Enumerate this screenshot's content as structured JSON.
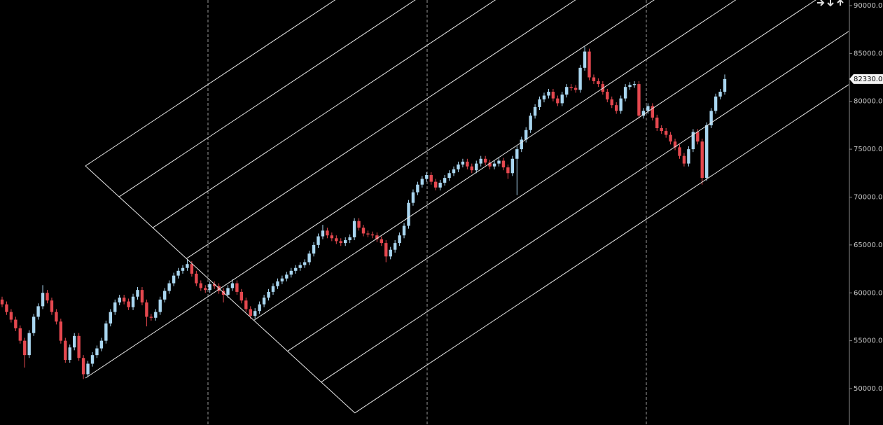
{
  "chart_data": {
    "type": "candlestick",
    "up_color": "#a9d6f0",
    "down_color": "#e5484f",
    "ylim": [
      46200,
      90580
    ],
    "yticks": [
      {
        "value": 50000,
        "label": "50000.0"
      },
      {
        "value": 55000,
        "label": "55000.0"
      },
      {
        "value": 60000,
        "label": "60000.0"
      },
      {
        "value": 65000,
        "label": "65000.0"
      },
      {
        "value": 70000,
        "label": "70000.0"
      },
      {
        "value": 75000,
        "label": "75000.0"
      },
      {
        "value": 80000,
        "label": "80000.0"
      },
      {
        "value": 85000,
        "label": "85000.0"
      },
      {
        "value": 90000,
        "label": "90000.0"
      }
    ],
    "last_price": {
      "value": 82330,
      "label": "82330.0"
    },
    "open": [
      59300,
      58800,
      58000,
      57200,
      56300,
      55000,
      53500,
      55800,
      57500,
      58600,
      60000,
      59200,
      58000,
      57000,
      55000,
      53000,
      54300,
      55500,
      53200,
      51500,
      52600,
      53500,
      54200,
      55000,
      56800,
      58000,
      59000,
      59500,
      59100,
      58500,
      59600,
      60300,
      59000,
      57500,
      57400,
      58000,
      59300,
      60200,
      61000,
      61800,
      62300,
      62600,
      63000,
      62000,
      61000,
      60500,
      60300,
      60900,
      60700,
      60200,
      59800,
      60500,
      61000,
      60100,
      59200,
      58300,
      57600,
      58100,
      58800,
      59500,
      60100,
      60700,
      61200,
      61500,
      61900,
      62300,
      62600,
      62900,
      63200,
      64100,
      65000,
      65900,
      66500,
      66000,
      65700,
      65400,
      65200,
      65500,
      65800,
      67500,
      66800,
      66200,
      66100,
      66000,
      65600,
      65200,
      63800,
      64500,
      65200,
      66000,
      67000,
      69400,
      70500,
      71300,
      71900,
      72300,
      71600,
      71000,
      71500,
      72000,
      72500,
      72900,
      73400,
      73700,
      73200,
      72800,
      73500,
      74000,
      73600,
      73200,
      73500,
      73800,
      73100,
      72500,
      74000,
      75000,
      76000,
      77000,
      78500,
      79400,
      80200,
      80600,
      81000,
      80300,
      79800,
      80700,
      81500,
      81400,
      81200,
      83500,
      85200,
      82500,
      82100,
      81800,
      81000,
      80200,
      79600,
      79000,
      80300,
      81500,
      81700,
      81800,
      78500,
      79000,
      79500,
      78300,
      77200,
      76900,
      76500,
      75800,
      75200,
      74300,
      73500,
      75000,
      76800,
      75800,
      72000,
      77500,
      79000,
      80500,
      81000
    ],
    "high": [
      59600,
      59100,
      58300,
      57500,
      56600,
      55300,
      56100,
      57800,
      58900,
      60800,
      60300,
      59500,
      58300,
      57300,
      55300,
      54600,
      55800,
      55800,
      53500,
      52900,
      53800,
      54500,
      55300,
      57100,
      58300,
      59300,
      59800,
      59800,
      59400,
      59900,
      60600,
      60600,
      59300,
      57800,
      58300,
      59600,
      60500,
      61300,
      62100,
      62600,
      62900,
      63500,
      63300,
      62300,
      61300,
      60800,
      61200,
      61200,
      61000,
      60500,
      60800,
      61400,
      61300,
      60400,
      59500,
      58600,
      58400,
      59100,
      59800,
      60400,
      61000,
      61500,
      61800,
      62200,
      62600,
      62900,
      63200,
      63500,
      64400,
      65300,
      66200,
      67100,
      66800,
      66300,
      66000,
      65700,
      65800,
      66100,
      67800,
      67800,
      67100,
      66500,
      66400,
      66300,
      65900,
      65500,
      64800,
      65500,
      66300,
      67300,
      69700,
      70800,
      71600,
      72200,
      72600,
      72600,
      71900,
      71800,
      72300,
      72800,
      73200,
      73700,
      74000,
      74000,
      73500,
      73800,
      74300,
      74300,
      73900,
      73800,
      74100,
      74100,
      73400,
      74300,
      75300,
      76300,
      77300,
      78800,
      79700,
      80500,
      80900,
      81300,
      81300,
      80600,
      81000,
      81800,
      81800,
      81700,
      83800,
      85700,
      85500,
      82800,
      82400,
      82100,
      81300,
      80500,
      79900,
      80600,
      81800,
      82000,
      82100,
      82100,
      79300,
      79800,
      79800,
      78600,
      77500,
      77200,
      76800,
      76100,
      75500,
      74600,
      75300,
      77100,
      77100,
      76100,
      77800,
      79300,
      80800,
      81300,
      82800
    ],
    "low": [
      58500,
      57700,
      56900,
      56000,
      54700,
      52200,
      53200,
      55500,
      57200,
      58300,
      58900,
      57700,
      56700,
      54700,
      52700,
      52700,
      54000,
      52900,
      51000,
      51200,
      52300,
      53200,
      53900,
      54700,
      56500,
      57700,
      58700,
      58800,
      58200,
      58200,
      59300,
      58700,
      56500,
      57100,
      57100,
      57700,
      59000,
      59900,
      60700,
      61500,
      62000,
      62300,
      61700,
      60700,
      60200,
      60000,
      60000,
      60400,
      59900,
      59000,
      59500,
      60200,
      59800,
      58900,
      58000,
      57300,
      57300,
      57800,
      58500,
      59200,
      59800,
      60400,
      60900,
      61200,
      61600,
      62000,
      62300,
      62600,
      62900,
      63800,
      64700,
      65600,
      65700,
      65400,
      65100,
      64900,
      64900,
      65200,
      65500,
      66500,
      65900,
      65800,
      65700,
      65300,
      64900,
      63200,
      63500,
      64200,
      64900,
      65700,
      66700,
      69100,
      70200,
      71000,
      71600,
      71300,
      70700,
      70700,
      71200,
      71700,
      72200,
      72600,
      73100,
      72900,
      72500,
      72500,
      73200,
      73300,
      72900,
      72900,
      73200,
      72800,
      71900,
      72200,
      70200,
      74700,
      75700,
      76700,
      78200,
      79100,
      79900,
      80300,
      80000,
      79500,
      79500,
      80400,
      81100,
      80900,
      80900,
      83200,
      82200,
      81800,
      81500,
      80700,
      79900,
      79300,
      78700,
      78700,
      80000,
      81200,
      81400,
      78200,
      78200,
      78700,
      78000,
      76900,
      76600,
      76200,
      75500,
      74900,
      74000,
      73200,
      73200,
      74700,
      75500,
      71300,
      71700,
      77200,
      78700,
      80200,
      80700
    ],
    "close": [
      58800,
      58000,
      57200,
      56300,
      55000,
      53500,
      55800,
      57500,
      58600,
      60000,
      59200,
      58000,
      57000,
      55000,
      53000,
      54300,
      55500,
      53200,
      51500,
      52600,
      53500,
      54200,
      55000,
      56800,
      58000,
      59000,
      59500,
      59100,
      58500,
      59600,
      60300,
      59000,
      57500,
      57400,
      58000,
      59300,
      60200,
      61000,
      61800,
      62300,
      62600,
      63000,
      62000,
      61000,
      60500,
      60300,
      60900,
      60700,
      60200,
      59800,
      60500,
      61000,
      60100,
      59200,
      58300,
      57600,
      58100,
      58800,
      59500,
      60100,
      60700,
      61200,
      61500,
      61900,
      62300,
      62600,
      62900,
      63200,
      64100,
      65000,
      65900,
      66500,
      66000,
      65700,
      65400,
      65200,
      65500,
      65800,
      67500,
      66800,
      66200,
      66100,
      66000,
      65600,
      65200,
      63800,
      64500,
      65200,
      66000,
      67000,
      69400,
      70500,
      71300,
      71900,
      72300,
      71600,
      71000,
      71500,
      72000,
      72500,
      72900,
      73400,
      73700,
      73200,
      72800,
      73500,
      74000,
      73600,
      73200,
      73500,
      73800,
      73100,
      72500,
      74000,
      75000,
      76000,
      77000,
      78500,
      79400,
      80200,
      80600,
      81000,
      80300,
      79800,
      80700,
      81500,
      81400,
      81200,
      83500,
      85200,
      82500,
      82100,
      81800,
      81000,
      80200,
      79600,
      79000,
      80300,
      81500,
      81700,
      81800,
      78500,
      79000,
      79500,
      78300,
      77200,
      76900,
      76500,
      75800,
      75200,
      74300,
      73500,
      75000,
      76800,
      75800,
      72000,
      77500,
      79000,
      80500,
      81000,
      82330
    ]
  }
}
